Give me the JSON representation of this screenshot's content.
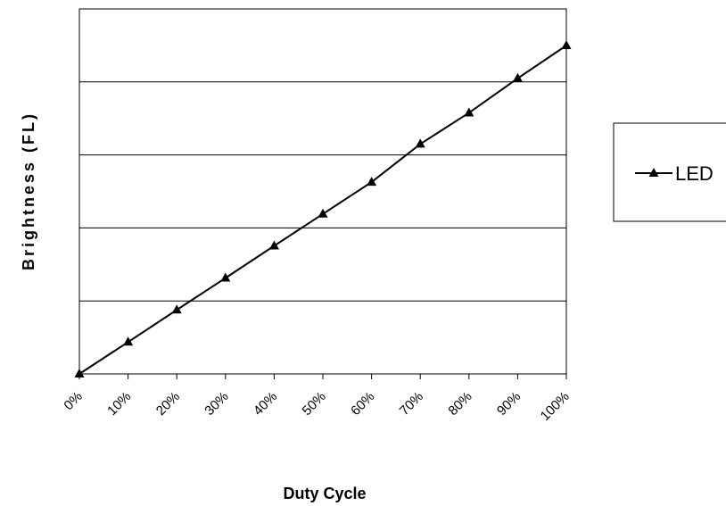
{
  "chart_data": {
    "type": "line",
    "title": "",
    "xlabel": "Duty Cycle",
    "ylabel": "Brightness (FL)",
    "categories": [
      "0%",
      "10%",
      "20%",
      "30%",
      "40%",
      "50%",
      "60%",
      "70%",
      "80%",
      "90%",
      "100%"
    ],
    "x": [
      0,
      10,
      20,
      30,
      40,
      50,
      60,
      70,
      80,
      90,
      100
    ],
    "series": [
      {
        "name": "LED",
        "values": [
          0,
          9.7,
          19.5,
          29.2,
          39.0,
          48.7,
          58.4,
          70.0,
          79.5,
          90.0,
          100
        ],
        "color": "#000000",
        "marker": "triangle"
      }
    ],
    "ylim": [
      0,
      100
    ],
    "y_gridlines": 5,
    "y_tick_labels_visible": false,
    "grid": true,
    "legend_position": "right"
  }
}
